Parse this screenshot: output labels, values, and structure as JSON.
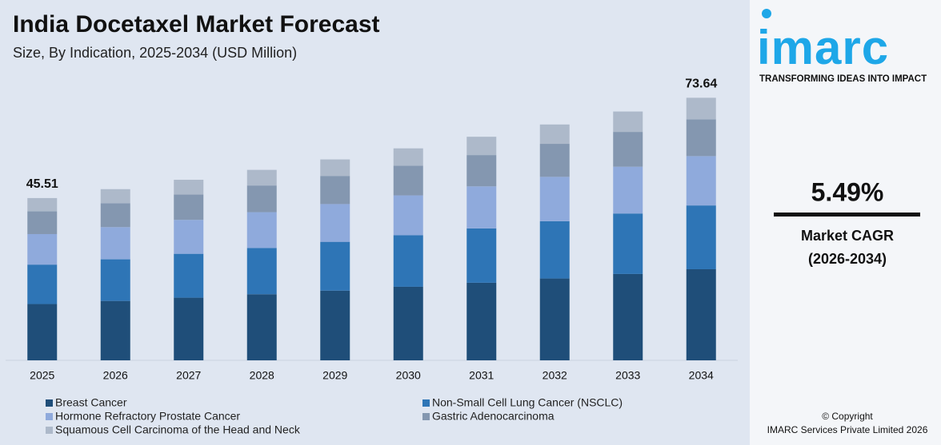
{
  "chart_data": {
    "type": "stacked-bar",
    "title": "India Docetaxel Market Forecast",
    "subtitle": "Size, By Indication, 2025-2034 (USD Million)",
    "categories": [
      "2025",
      "2026",
      "2027",
      "2028",
      "2029",
      "2030",
      "2031",
      "2032",
      "2033",
      "2034"
    ],
    "series": [
      {
        "name": "Breast Cancer",
        "color": "#1f4e79",
        "values": [
          15.79,
          16.66,
          17.57,
          18.54,
          19.55,
          20.63,
          21.76,
          22.95,
          24.22,
          25.55
        ]
      },
      {
        "name": "Non-Small Cell Lung Cancer (NSCLC)",
        "color": "#2e75b6",
        "values": [
          11.06,
          11.67,
          12.31,
          12.98,
          13.69,
          14.45,
          15.24,
          16.07,
          16.96,
          17.89
        ]
      },
      {
        "name": "Hormone Refractory Prostate Cancer",
        "color": "#8faadc",
        "values": [
          8.56,
          9.03,
          9.52,
          10.04,
          10.59,
          11.18,
          11.79,
          12.44,
          13.12,
          13.84
        ]
      },
      {
        "name": "Gastric Adenocarcinoma",
        "color": "#8497b0",
        "values": [
          6.37,
          6.72,
          7.09,
          7.48,
          7.89,
          8.32,
          8.78,
          9.26,
          9.77,
          10.31
        ]
      },
      {
        "name": "Squamous Cell Carcinoma of the Head and Neck",
        "color": "#adb9ca",
        "values": [
          3.73,
          3.93,
          4.15,
          4.38,
          4.63,
          4.87,
          5.14,
          5.43,
          5.72,
          6.05
        ]
      }
    ],
    "totals": [
      45.51,
      null,
      null,
      null,
      null,
      null,
      null,
      null,
      null,
      73.64
    ],
    "ylim": [
      0,
      80
    ]
  },
  "sidebar": {
    "logo": "imarc",
    "tagline": "TRANSFORMING IDEAS INTO IMPACT",
    "cagr": "5.49%",
    "cagr_label": "Market CAGR",
    "cagr_period": "(2026-2034)",
    "copyright": "© Copyright",
    "owner": "IMARC Services Private Limited 2026"
  }
}
